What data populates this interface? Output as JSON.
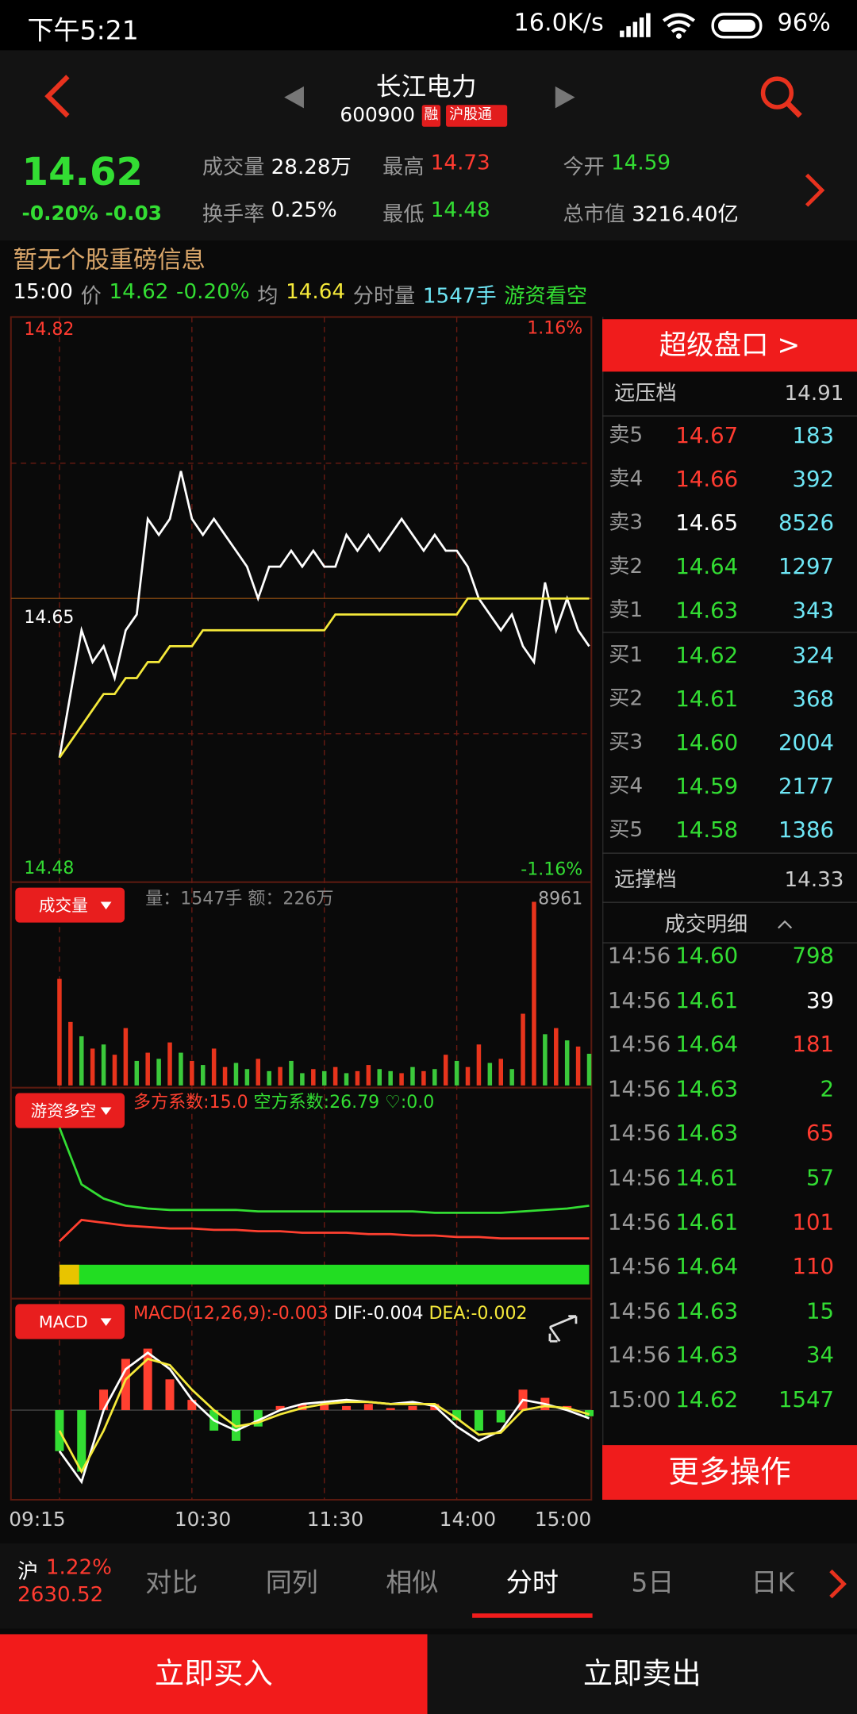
{
  "status_bar": {
    "time": "下午5:21",
    "speed": "16.0K/s",
    "battery": "96%"
  },
  "header": {
    "name": "长江电力",
    "code": "600900",
    "badge_margin": "融",
    "badge_connect": "沪股通"
  },
  "quote": {
    "price": "14.62",
    "change": "-0.20% -0.03",
    "stats": [
      {
        "label": "成交量",
        "value": "28.28万",
        "color": "#ffffff"
      },
      {
        "label": "最高",
        "value": "14.73",
        "color": "#ff3b30"
      },
      {
        "label": "今开",
        "value": "14.59",
        "color": "#33dd33"
      },
      {
        "label": "换手率",
        "value": "0.25%",
        "color": "#ffffff"
      },
      {
        "label": "最低",
        "value": "14.48",
        "color": "#33dd33"
      },
      {
        "label": "总市值",
        "value": "3216.40亿",
        "color": "#ffffff"
      }
    ]
  },
  "news": "暂无个股重磅信息",
  "info_line": [
    {
      "text": "15:00",
      "color": "#ffffff"
    },
    {
      "text": "价",
      "color": "#999999"
    },
    {
      "text": "14.62",
      "color": "#33dd33"
    },
    {
      "text": "-0.20%",
      "color": "#33dd33"
    },
    {
      "text": "均",
      "color": "#999999"
    },
    {
      "text": "14.64",
      "color": "#f5e93a"
    },
    {
      "text": "分时量",
      "color": "#999999"
    },
    {
      "text": "1547手",
      "color": "#6ee6f5"
    },
    {
      "text": "游资看空",
      "color": "#33dd33"
    }
  ],
  "chart_data": [
    {
      "type": "line",
      "x": [
        0,
        5,
        10,
        15,
        20,
        25,
        30,
        35,
        40,
        45,
        50,
        55,
        60,
        65,
        70,
        75,
        80,
        85,
        90,
        95,
        100,
        105,
        110,
        115,
        120,
        125,
        130,
        135,
        140,
        145,
        150,
        155,
        160,
        165,
        170,
        175,
        180,
        185,
        190,
        195,
        200,
        205,
        210,
        215,
        220,
        225,
        230,
        235,
        240
      ],
      "series": [
        {
          "color": "#ffffff",
          "values": [
            14.55,
            14.59,
            14.63,
            14.61,
            14.62,
            14.6,
            14.63,
            14.64,
            14.7,
            14.69,
            14.7,
            14.73,
            14.7,
            14.69,
            14.7,
            14.69,
            14.68,
            14.67,
            14.65,
            14.67,
            14.67,
            14.68,
            14.67,
            14.68,
            14.67,
            14.67,
            14.69,
            14.68,
            14.69,
            14.68,
            14.69,
            14.7,
            14.69,
            14.68,
            14.69,
            14.68,
            14.68,
            14.67,
            14.65,
            14.64,
            14.63,
            14.64,
            14.62,
            14.61,
            14.66,
            14.63,
            14.65,
            14.63,
            14.62
          ]
        },
        {
          "color": "#f5e93a",
          "values": [
            14.55,
            14.56,
            14.57,
            14.58,
            14.59,
            14.59,
            14.6,
            14.6,
            14.61,
            14.61,
            14.62,
            14.62,
            14.62,
            14.63,
            14.63,
            14.63,
            14.63,
            14.63,
            14.63,
            14.63,
            14.63,
            14.63,
            14.63,
            14.63,
            14.63,
            14.64,
            14.64,
            14.64,
            14.64,
            14.64,
            14.64,
            14.64,
            14.64,
            14.64,
            14.64,
            14.64,
            14.64,
            14.65,
            14.65,
            14.65,
            14.65,
            14.65,
            14.65,
            14.65,
            14.65,
            14.65,
            14.65,
            14.65,
            14.65
          ]
        }
      ],
      "xlim": [
        -21,
        240
      ],
      "xticks": [
        {
          "value": -15,
          "label": "09:15"
        },
        {
          "value": 60,
          "label": "10:30"
        },
        {
          "value": 120,
          "label": "11:30"
        },
        {
          "value": 180,
          "label": "14:00"
        },
        {
          "value": 240,
          "label": "15:00"
        }
      ],
      "ylim": [
        14.48,
        14.82
      ],
      "yticks": [
        14.82,
        14.65,
        14.48
      ],
      "y2lim": [
        -1.16,
        1.16
      ],
      "y2ticks": [
        {
          "value": 1.16,
          "label": "1.16%"
        },
        {
          "value": -1.16,
          "label": "-1.16%"
        }
      ]
    },
    {
      "type": "bar",
      "title": "成交量",
      "subtitle": "量：1547手 额：226万",
      "x": [
        0,
        5,
        10,
        15,
        20,
        25,
        30,
        35,
        40,
        45,
        50,
        55,
        60,
        65,
        70,
        75,
        80,
        85,
        90,
        95,
        100,
        105,
        110,
        115,
        120,
        125,
        130,
        135,
        140,
        145,
        150,
        155,
        160,
        165,
        170,
        175,
        180,
        185,
        190,
        195,
        200,
        205,
        210,
        215,
        220,
        225,
        230,
        235,
        240
      ],
      "values": [
        5200,
        3100,
        2400,
        1800,
        2000,
        1500,
        2800,
        1200,
        1600,
        1300,
        2100,
        1600,
        1200,
        1000,
        1800,
        900,
        1100,
        800,
        1300,
        700,
        900,
        1200,
        600,
        800,
        700,
        900,
        600,
        700,
        1000,
        800,
        700,
        600,
        900,
        700,
        800,
        1500,
        1200,
        900,
        2000,
        1100,
        1300,
        800,
        3500,
        8961,
        2500,
        2800,
        2200,
        1900,
        1547
      ],
      "colors": [
        "#e8341c",
        "#e8341c",
        "#3bc93b",
        "#e8341c",
        "#3bc93b",
        "#e8341c",
        "#e8341c",
        "#3bc93b",
        "#e8341c",
        "#3bc93b",
        "#e8341c",
        "#3bc93b",
        "#e8341c",
        "#3bc93b",
        "#e8341c",
        "#e8341c",
        "#3bc93b",
        "#3bc93b",
        "#e8341c",
        "#3bc93b",
        "#e8341c",
        "#3bc93b",
        "#3bc93b",
        "#e8341c",
        "#3bc93b",
        "#e8341c",
        "#3bc93b",
        "#e8341c",
        "#e8341c",
        "#3bc93b",
        "#3bc93b",
        "#e8341c",
        "#3bc93b",
        "#e8341c",
        "#3bc93b",
        "#e8341c",
        "#3bc93b",
        "#e8341c",
        "#e8341c",
        "#3bc93b",
        "#e8341c",
        "#3bc93b",
        "#e8341c",
        "#e8341c",
        "#3bc93b",
        "#e8341c",
        "#3bc93b",
        "#e8341c",
        "#3bc93b"
      ],
      "xlim": [
        -21,
        240
      ],
      "ylim": [
        0,
        8961
      ],
      "yticks": [
        8961
      ]
    },
    {
      "type": "line",
      "title": "游资多空",
      "annotation": "♡:0.0",
      "x": [
        0,
        10,
        20,
        30,
        40,
        50,
        60,
        70,
        80,
        90,
        100,
        110,
        120,
        130,
        140,
        150,
        160,
        170,
        180,
        190,
        200,
        210,
        220,
        230,
        240
      ],
      "series": [
        {
          "name": "多方系数:15.0",
          "color": "#ff4030",
          "values": [
            15,
            30,
            28,
            26,
            25,
            24,
            24,
            23,
            23,
            22,
            22,
            21,
            21,
            21,
            20,
            20,
            19,
            19,
            18,
            18,
            17,
            17,
            17,
            17,
            17
          ]
        },
        {
          "name": "空方系数:26.79",
          "color": "#33dd33",
          "values": [
            95,
            55,
            45,
            40,
            38,
            37,
            37,
            37,
            37,
            36,
            36,
            36,
            36,
            36,
            36,
            36,
            36,
            35,
            35,
            35,
            35,
            36,
            37,
            38,
            40
          ]
        }
      ],
      "xlim": [
        -21,
        240
      ],
      "ylim": [
        0,
        100
      ]
    },
    {
      "type": "macd",
      "title": "MACD",
      "x": [
        0,
        10,
        20,
        30,
        40,
        50,
        60,
        70,
        80,
        90,
        100,
        110,
        120,
        130,
        140,
        150,
        160,
        170,
        180,
        190,
        200,
        210,
        220,
        230,
        240
      ],
      "series": [
        {
          "name": "MACD(12,26,9):-0.003",
          "color": "#ff4030",
          "values": [
            -0.02,
            -0.03,
            0.01,
            0.025,
            0.03,
            0.015,
            0.005,
            -0.01,
            -0.015,
            -0.008,
            0.002,
            0.003,
            0.004,
            0.002,
            0.003,
            0.001,
            0.002,
            0.003,
            -0.005,
            -0.01,
            -0.006,
            0.01,
            0.006,
            0.002,
            -0.003
          ]
        },
        {
          "name": "DIF:-0.004",
          "color": "#ffffff",
          "values": [
            -0.02,
            -0.035,
            0.0,
            0.02,
            0.028,
            0.02,
            0.005,
            -0.005,
            -0.01,
            -0.005,
            0.0,
            0.003,
            0.004,
            0.005,
            0.004,
            0.003,
            0.004,
            0.002,
            -0.008,
            -0.015,
            -0.01,
            0.005,
            0.003,
            0.0,
            -0.004
          ]
        },
        {
          "name": "DEA:-0.002",
          "color": "#f5e93a",
          "values": [
            -0.01,
            -0.03,
            -0.01,
            0.015,
            0.025,
            0.022,
            0.01,
            0.0,
            -0.008,
            -0.006,
            -0.002,
            0.001,
            0.003,
            0.004,
            0.004,
            0.003,
            0.003,
            0.003,
            -0.004,
            -0.012,
            -0.011,
            0.0,
            0.002,
            0.001,
            -0.002
          ]
        }
      ],
      "negative_color": "#33dd33",
      "xlim": [
        -21,
        240
      ],
      "ylim": [
        -0.04,
        0.04
      ]
    }
  ],
  "order_book": {
    "super_button": "超级盘口 >",
    "far_ask": {
      "label": "远压档",
      "price": "14.91"
    },
    "asks": [
      {
        "label": "卖5",
        "price": "14.67",
        "volume": "183"
      },
      {
        "label": "卖4",
        "price": "14.66",
        "volume": "392"
      },
      {
        "label": "卖3",
        "price": "14.65",
        "volume": "8526"
      },
      {
        "label": "卖2",
        "price": "14.64",
        "volume": "1297"
      },
      {
        "label": "卖1",
        "price": "14.63",
        "volume": "343"
      }
    ],
    "bids": [
      {
        "label": "买1",
        "price": "14.62",
        "volume": "324"
      },
      {
        "label": "买2",
        "price": "14.61",
        "volume": "368"
      },
      {
        "label": "买3",
        "price": "14.60",
        "volume": "2004"
      },
      {
        "label": "买4",
        "price": "14.59",
        "volume": "2177"
      },
      {
        "label": "买5",
        "price": "14.58",
        "volume": "1386"
      }
    ],
    "far_bid": {
      "label": "远撑档",
      "price": "14.33"
    }
  },
  "trades": {
    "title": "成交明细",
    "rows": [
      {
        "time": "14:56",
        "price": "14.60",
        "volume": "798",
        "color": "#33dd33"
      },
      {
        "time": "14:56",
        "price": "14.61",
        "volume": "39",
        "color": "#ffffff"
      },
      {
        "time": "14:56",
        "price": "14.64",
        "volume": "181",
        "color": "#ff3b30"
      },
      {
        "time": "14:56",
        "price": "14.63",
        "volume": "2",
        "color": "#33dd33"
      },
      {
        "time": "14:56",
        "price": "14.63",
        "volume": "65",
        "color": "#ff3b30"
      },
      {
        "time": "14:56",
        "price": "14.61",
        "volume": "57",
        "color": "#33dd33"
      },
      {
        "time": "14:56",
        "price": "14.61",
        "volume": "101",
        "color": "#ff3b30"
      },
      {
        "time": "14:56",
        "price": "14.64",
        "volume": "110",
        "color": "#ff3b30"
      },
      {
        "time": "14:56",
        "price": "14.63",
        "volume": "15",
        "color": "#33dd33"
      },
      {
        "time": "14:56",
        "price": "14.63",
        "volume": "34",
        "color": "#33dd33"
      },
      {
        "time": "15:00",
        "price": "14.62",
        "volume": "1547",
        "color": "#33dd33"
      }
    ]
  },
  "more_button": "更多操作",
  "tabs": {
    "index": {
      "name": "沪",
      "change": "1.22%",
      "value": "2630.52"
    },
    "items": [
      "对比",
      "同列",
      "相似",
      "分时",
      "5日",
      "日K"
    ],
    "active": 3
  },
  "actions": {
    "buy": "立即买入",
    "sell": "立即卖出"
  }
}
